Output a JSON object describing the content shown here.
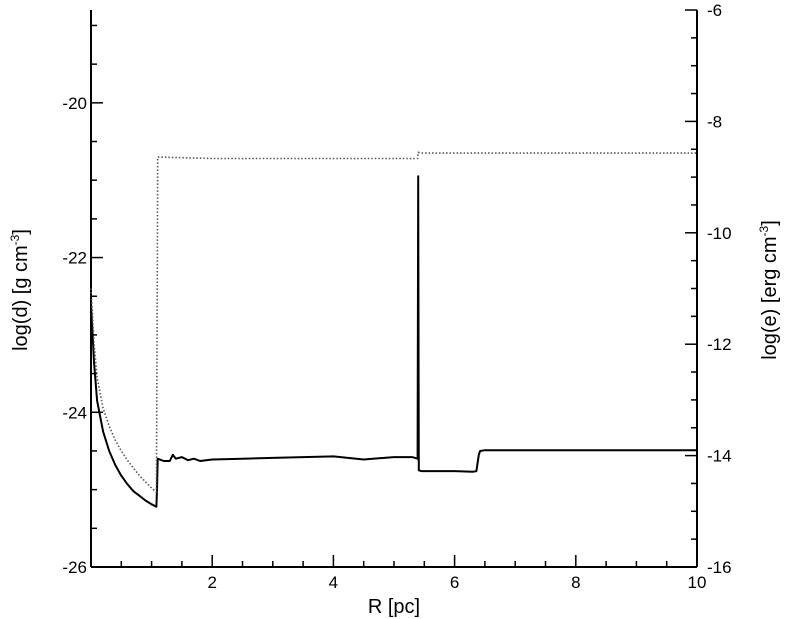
{
  "chart_data": {
    "type": "line",
    "xlabel": "R [pc]",
    "ylabel_left": {
      "base": "log(d) [g cm",
      "sup": "-3",
      "close": "]"
    },
    "ylabel_right": {
      "base": "log(e) [erg cm",
      "sup": "-3",
      "close": "]"
    },
    "xlim": [
      0,
      10
    ],
    "ylim_left": [
      -26,
      -18.8
    ],
    "ylim_right": [
      -16,
      -6
    ],
    "x_ticks": [
      {
        "value": 2,
        "label": "2"
      },
      {
        "value": 4,
        "label": "4"
      },
      {
        "value": 6,
        "label": "6"
      },
      {
        "value": 8,
        "label": "8"
      },
      {
        "value": 10,
        "label": "10"
      }
    ],
    "y_left_ticks": [
      {
        "value": -20,
        "label": "-20"
      },
      {
        "value": -22,
        "label": "-22"
      },
      {
        "value": -24,
        "label": "-24"
      },
      {
        "value": -26,
        "label": "-26"
      }
    ],
    "y_right_ticks": [
      {
        "value": -6,
        "label": "-6"
      },
      {
        "value": -8,
        "label": "-8"
      },
      {
        "value": -10,
        "label": "-10"
      },
      {
        "value": -12,
        "label": "-12"
      },
      {
        "value": -14,
        "label": "-14"
      },
      {
        "value": -16,
        "label": "-16"
      }
    ],
    "grid": false,
    "legend": "none",
    "series": [
      {
        "axis": "left",
        "style": "solid",
        "color": "#000000",
        "x": [
          0.0,
          0.05,
          0.1,
          0.2,
          0.3,
          0.4,
          0.5,
          0.6,
          0.7,
          0.8,
          0.9,
          1.0,
          1.08,
          1.09,
          1.1,
          1.2,
          1.3,
          1.35,
          1.4,
          1.5,
          1.6,
          1.7,
          1.8,
          1.9,
          2.0,
          2.5,
          3.0,
          3.5,
          4.0,
          4.5,
          5.0,
          5.3,
          5.39,
          5.4,
          5.41,
          5.45,
          6.0,
          6.3,
          6.36,
          6.4,
          6.42,
          6.5,
          8.0,
          10.0
        ],
        "y": [
          -22.6,
          -23.35,
          -23.85,
          -24.25,
          -24.5,
          -24.68,
          -24.82,
          -24.93,
          -25.02,
          -25.08,
          -25.14,
          -25.19,
          -25.22,
          -24.95,
          -24.6,
          -24.63,
          -24.63,
          -24.55,
          -24.6,
          -24.58,
          -24.62,
          -24.6,
          -24.63,
          -24.62,
          -24.61,
          -24.6,
          -24.59,
          -24.58,
          -24.57,
          -24.61,
          -24.58,
          -24.58,
          -24.6,
          -20.95,
          -24.75,
          -24.76,
          -24.76,
          -24.77,
          -24.76,
          -24.55,
          -24.5,
          -24.49,
          -24.49,
          -24.49
        ]
      },
      {
        "axis": "left",
        "style": "dotted",
        "color": "#555555",
        "x": [
          0.0,
          0.05,
          0.1,
          0.2,
          0.3,
          0.4,
          0.5,
          0.6,
          0.7,
          0.8,
          0.9,
          1.0,
          1.08,
          1.09,
          1.1,
          2.0,
          5.39,
          5.4,
          5.45,
          10.0
        ],
        "y": [
          -22.4,
          -23.1,
          -23.55,
          -23.95,
          -24.18,
          -24.36,
          -24.5,
          -24.62,
          -24.72,
          -24.82,
          -24.9,
          -24.98,
          -25.03,
          -22.9,
          -20.7,
          -20.72,
          -20.72,
          -20.64,
          -20.65,
          -20.65
        ]
      }
    ]
  }
}
